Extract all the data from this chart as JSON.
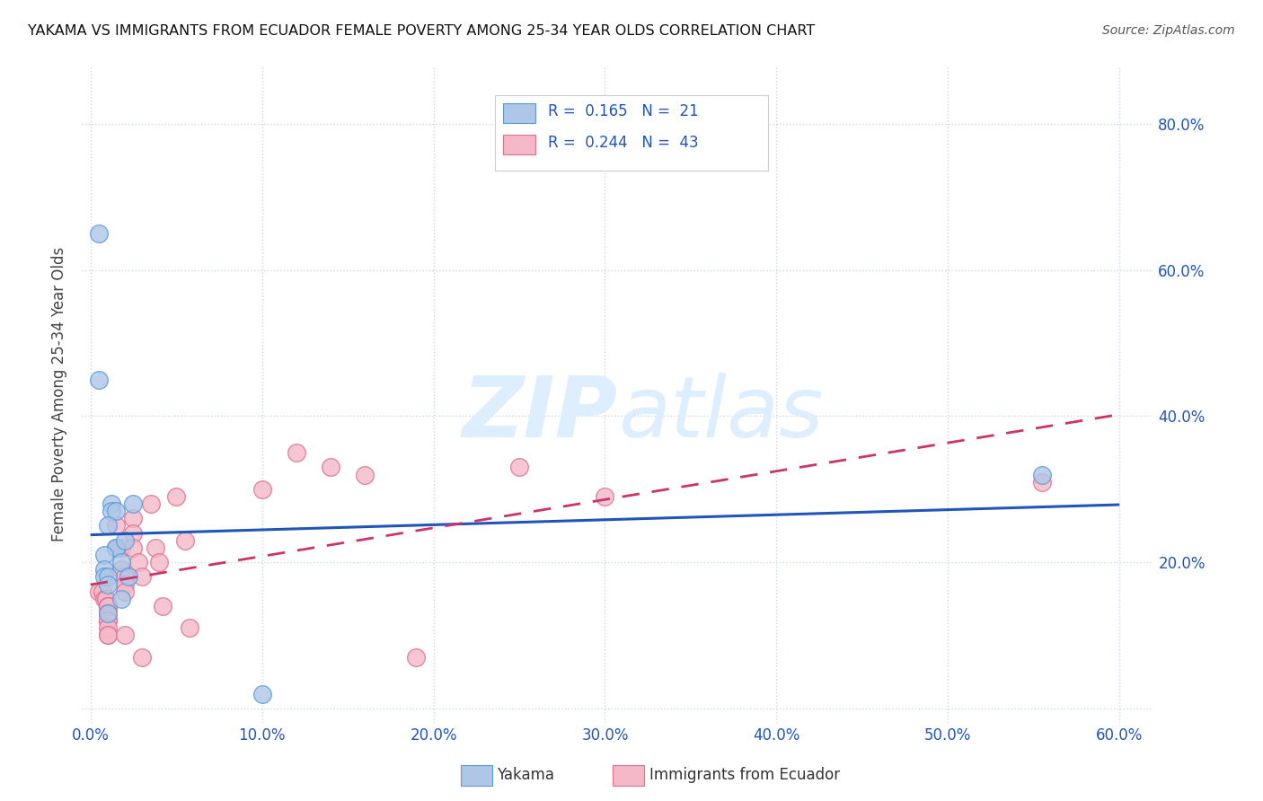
{
  "title": "YAKAMA VS IMMIGRANTS FROM ECUADOR FEMALE POVERTY AMONG 25-34 YEAR OLDS CORRELATION CHART",
  "source": "Source: ZipAtlas.com",
  "ylabel": "Female Poverty Among 25-34 Year Olds",
  "xlabel_ticks": [
    "0.0%",
    "10.0%",
    "20.0%",
    "30.0%",
    "40.0%",
    "50.0%",
    "60.0%"
  ],
  "xlabel_vals": [
    0.0,
    0.1,
    0.2,
    0.3,
    0.4,
    0.5,
    0.6
  ],
  "ylabel_right_ticks": [
    "20.0%",
    "40.0%",
    "60.0%",
    "80.0%"
  ],
  "ylabel_vals": [
    0.0,
    0.2,
    0.4,
    0.6,
    0.8
  ],
  "xlim": [
    -0.005,
    0.62
  ],
  "ylim": [
    -0.02,
    0.88
  ],
  "R_yakama": 0.165,
  "N_yakama": 21,
  "R_ecuador": 0.244,
  "N_ecuador": 43,
  "yakama_color": "#aec6e8",
  "ecuador_color": "#f4b8c8",
  "yakama_edge": "#5b9bd5",
  "ecuador_edge": "#e07090",
  "trend_yakama_color": "#2255bb",
  "trend_ecuador_color": "#cc3366",
  "watermark_color": "#ddeeff",
  "legend_text_color": "#2255bb",
  "background_color": "#ffffff",
  "yakama_x": [
    0.005,
    0.005,
    0.012,
    0.012,
    0.015,
    0.015,
    0.015,
    0.018,
    0.02,
    0.025,
    0.008,
    0.008,
    0.008,
    0.022,
    0.01,
    0.01,
    0.018,
    0.01,
    0.1,
    0.555,
    0.01
  ],
  "yakama_y": [
    0.65,
    0.45,
    0.28,
    0.27,
    0.27,
    0.22,
    0.22,
    0.2,
    0.23,
    0.28,
    0.21,
    0.19,
    0.18,
    0.18,
    0.18,
    0.17,
    0.15,
    0.13,
    0.02,
    0.32,
    0.25
  ],
  "ecuador_x": [
    0.005,
    0.007,
    0.008,
    0.009,
    0.01,
    0.01,
    0.01,
    0.01,
    0.01,
    0.01,
    0.01,
    0.01,
    0.01,
    0.01,
    0.015,
    0.015,
    0.018,
    0.018,
    0.02,
    0.02,
    0.02,
    0.02,
    0.025,
    0.025,
    0.025,
    0.028,
    0.03,
    0.03,
    0.035,
    0.038,
    0.04,
    0.042,
    0.05,
    0.055,
    0.058,
    0.1,
    0.12,
    0.14,
    0.16,
    0.19,
    0.25,
    0.3,
    0.555
  ],
  "ecuador_y": [
    0.16,
    0.16,
    0.15,
    0.15,
    0.14,
    0.14,
    0.14,
    0.13,
    0.13,
    0.12,
    0.12,
    0.11,
    0.1,
    0.1,
    0.25,
    0.22,
    0.22,
    0.19,
    0.18,
    0.17,
    0.16,
    0.1,
    0.26,
    0.24,
    0.22,
    0.2,
    0.18,
    0.07,
    0.28,
    0.22,
    0.2,
    0.14,
    0.29,
    0.23,
    0.11,
    0.3,
    0.35,
    0.33,
    0.32,
    0.07,
    0.33,
    0.29,
    0.31
  ]
}
